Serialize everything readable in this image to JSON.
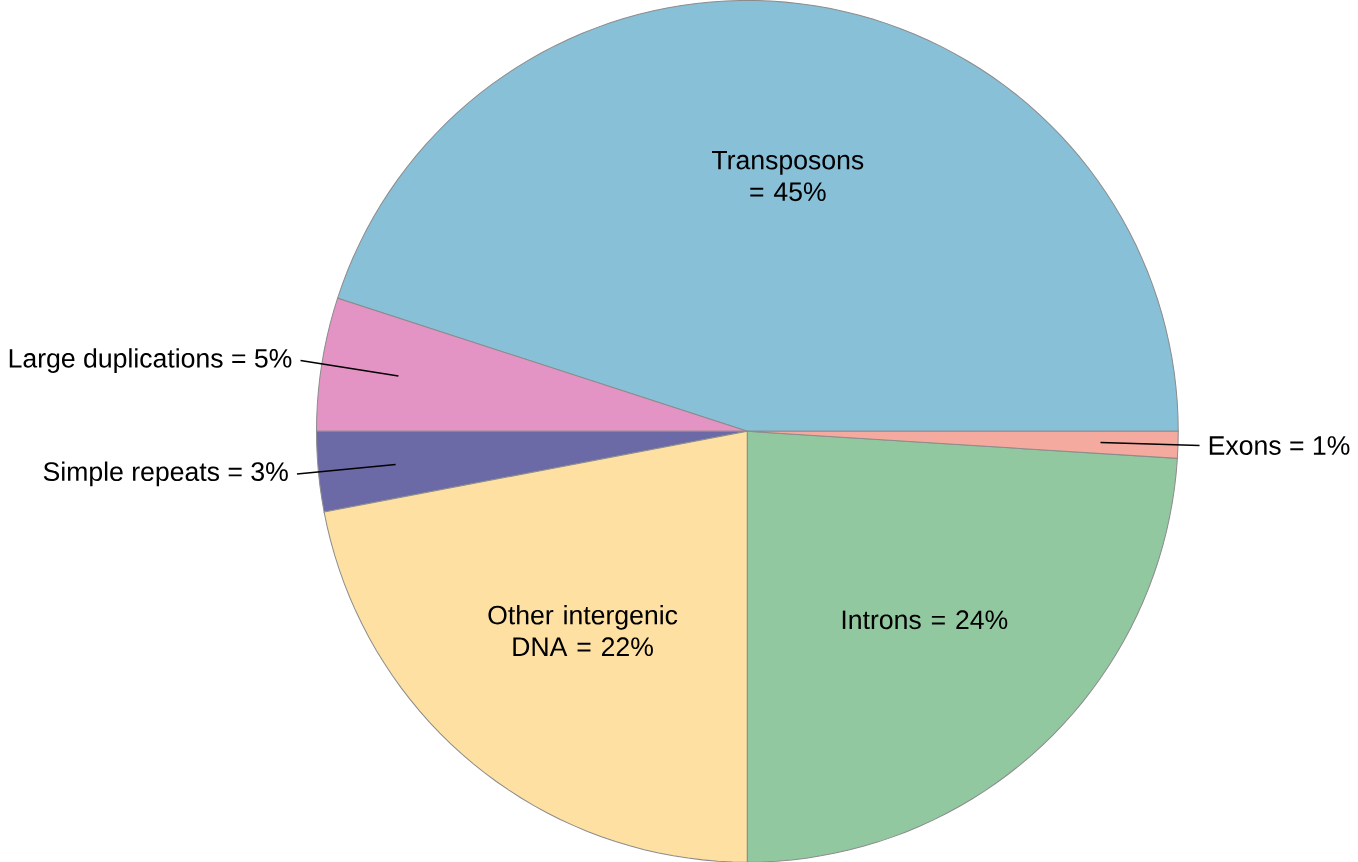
{
  "chart_data": {
    "type": "pie",
    "categories": [
      "Transposons = 45%",
      "Large duplications = 5%",
      "Simple repeats = 3%",
      "Other intergenic DNA = 22%",
      "Introns = 24%",
      "Exons = 1%"
    ],
    "values": [
      45,
      5,
      3,
      22,
      24,
      1
    ],
    "colors": [
      "#88c0d8",
      "#e394c4",
      "#6c6aa6",
      "#fde0a2",
      "#92c8a0",
      "#f5aaa0"
    ]
  }
}
